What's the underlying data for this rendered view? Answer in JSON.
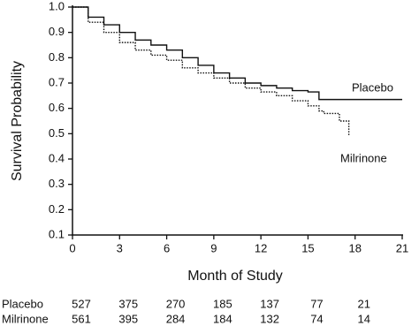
{
  "chart_data": {
    "type": "line",
    "x_label": "Month of Study",
    "y_label": "Survival Probability",
    "x": [
      0,
      1,
      2,
      3,
      4,
      5,
      6,
      7,
      8,
      9,
      10,
      11,
      12,
      13,
      14,
      15,
      15.7,
      16,
      17,
      17.6,
      21
    ],
    "series": [
      {
        "name": "Placebo",
        "color": "#111111",
        "dash": "none",
        "values": [
          1.0,
          0.96,
          0.93,
          0.9,
          0.87,
          0.85,
          0.83,
          0.8,
          0.77,
          0.74,
          0.72,
          0.7,
          0.69,
          0.68,
          0.67,
          0.665,
          0.635,
          0.635,
          0.635,
          0.635,
          0.635
        ]
      },
      {
        "name": "Milrinone",
        "color": "#111111",
        "dash": "1.5,1.5",
        "values": [
          1.0,
          0.94,
          0.9,
          0.86,
          0.83,
          0.81,
          0.79,
          0.76,
          0.74,
          0.72,
          0.7,
          0.68,
          0.665,
          0.65,
          0.63,
          0.61,
          0.59,
          0.58,
          0.55,
          0.49,
          null
        ]
      }
    ],
    "xlim": [
      0,
      21
    ],
    "xticks": [
      0,
      3,
      6,
      9,
      12,
      15,
      18,
      21
    ],
    "ylim": [
      0.1,
      1.0
    ],
    "yticks": [
      {
        "value": 0.1,
        "label": "0.1"
      },
      {
        "value": 0.2,
        "label": "0.2"
      },
      {
        "value": 0.3,
        "label": "0.3"
      },
      {
        "value": 0.4,
        "label": "0.4"
      },
      {
        "value": 0.5,
        "label": "0.5"
      },
      {
        "value": 0.6,
        "label": "0.6"
      },
      {
        "value": 0.7,
        "label": "0.7"
      },
      {
        "value": 0.8,
        "label": "0.8"
      },
      {
        "value": 0.9,
        "label": "0.9"
      },
      {
        "value": 1.0,
        "label": "1.0"
      }
    ],
    "at_risk": {
      "months": [
        0,
        3,
        6,
        9,
        12,
        15,
        18
      ],
      "rows": [
        {
          "name": "Placebo",
          "values": [
            527,
            375,
            270,
            185,
            137,
            77,
            21
          ]
        },
        {
          "name": "Milrinone",
          "values": [
            561,
            395,
            284,
            184,
            132,
            74,
            14
          ]
        }
      ]
    }
  }
}
